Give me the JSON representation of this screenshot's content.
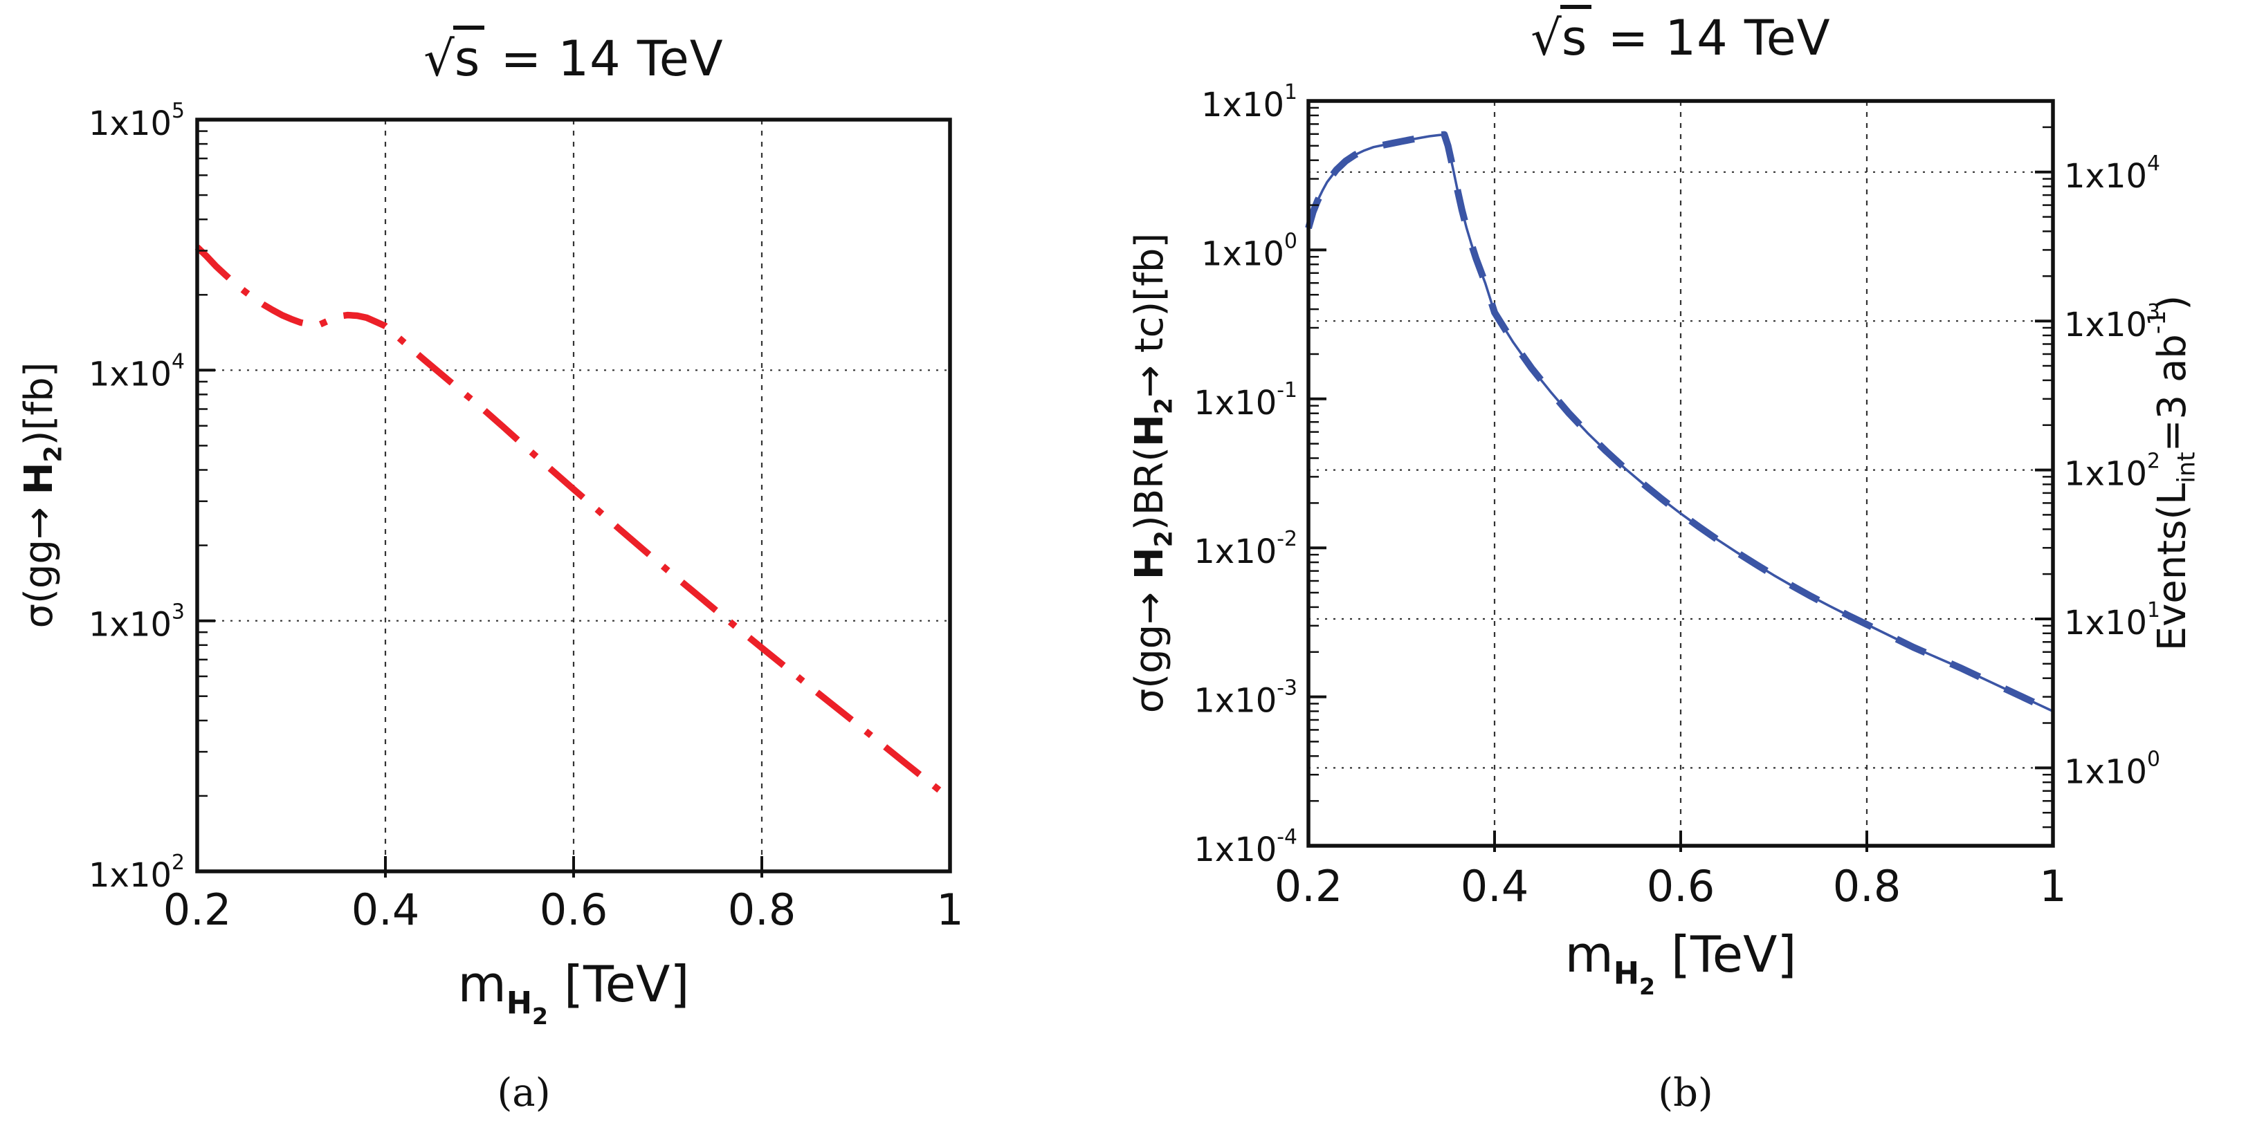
{
  "figure": {
    "background": "#ffffff",
    "frame_color": "#111111",
    "grid_color": "#333333"
  },
  "chart_data": [
    {
      "id": "a",
      "type": "line",
      "title": "√s = 14 TeV",
      "title_parts": {
        "radical": "√",
        "radicand": "s",
        "rest": " = 14 TeV"
      },
      "xlabel_text": "m_H2 [TeV]",
      "xlabel_segments": [
        {
          "t": "m"
        },
        {
          "t": "H",
          "b": true,
          "lvl": 1
        },
        {
          "t": "2",
          "b": true,
          "lvl": 2
        },
        {
          "t": " [TeV]"
        }
      ],
      "ylabel_text": "σ(gg→ H2)[fb]",
      "ylabel_segments": [
        {
          "t": "σ(gg→ "
        },
        {
          "t": "H",
          "b": true
        },
        {
          "t": "2",
          "b": true,
          "lvl": 1
        },
        {
          "t": ")[fb]"
        }
      ],
      "xlim": [
        0.2,
        1.0
      ],
      "xticks": [
        {
          "v": 0.2,
          "label": "0.2"
        },
        {
          "v": 0.4,
          "label": "0.4"
        },
        {
          "v": 0.6,
          "label": "0.6"
        },
        {
          "v": 0.8,
          "label": "0.8"
        },
        {
          "v": 1.0,
          "label": "1"
        }
      ],
      "ylog": {
        "top_exponent": 5,
        "bottom_exponent": 2,
        "tick_prefix": "1x10",
        "tick_exponents": [
          5,
          4,
          3,
          2
        ]
      },
      "grid": {
        "vertical_x": [
          0.4,
          0.6,
          0.8
        ],
        "horizontal_sigma_exponents": [
          4,
          3
        ]
      },
      "series": [
        {
          "name": "sigma(gg->H2)[fb]",
          "color": "#ec2028",
          "line_style": "dash-dot",
          "points": [
            [
              0.2,
              31000
            ],
            [
              0.21,
              28500
            ],
            [
              0.22,
              26000
            ],
            [
              0.23,
              24000
            ],
            [
              0.24,
              22200
            ],
            [
              0.25,
              20700
            ],
            [
              0.26,
              19400
            ],
            [
              0.27,
              18300
            ],
            [
              0.28,
              17400
            ],
            [
              0.29,
              16600
            ],
            [
              0.3,
              16000
            ],
            [
              0.31,
              15500
            ],
            [
              0.32,
              15200
            ],
            [
              0.325,
              15100
            ],
            [
              0.33,
              15200
            ],
            [
              0.34,
              15800
            ],
            [
              0.35,
              16400
            ],
            [
              0.36,
              16600
            ],
            [
              0.37,
              16500
            ],
            [
              0.38,
              16200
            ],
            [
              0.39,
              15600
            ],
            [
              0.4,
              15000
            ],
            [
              0.42,
              12900
            ],
            [
              0.44,
              11100
            ],
            [
              0.46,
              9600
            ],
            [
              0.48,
              8300
            ],
            [
              0.5,
              7200
            ],
            [
              0.525,
              5950
            ],
            [
              0.55,
              4900
            ],
            [
              0.575,
              4050
            ],
            [
              0.6,
              3350
            ],
            [
              0.625,
              2780
            ],
            [
              0.65,
              2300
            ],
            [
              0.675,
              1910
            ],
            [
              0.7,
              1590
            ],
            [
              0.725,
              1330
            ],
            [
              0.75,
              1110
            ],
            [
              0.775,
              930
            ],
            [
              0.8,
              780
            ],
            [
              0.85,
              550
            ],
            [
              0.9,
              390
            ],
            [
              0.95,
              275
            ],
            [
              1.0,
              195
            ]
          ]
        }
      ],
      "caption": "(a)"
    },
    {
      "id": "b",
      "type": "line",
      "title": "√s = 14 TeV",
      "title_parts": {
        "radical": "√",
        "radicand": "s",
        "rest": " = 14 TeV"
      },
      "xlabel_text": "m_H2 [TeV]",
      "xlabel_segments": [
        {
          "t": "m"
        },
        {
          "t": "H",
          "b": true,
          "lvl": 1
        },
        {
          "t": "2",
          "b": true,
          "lvl": 2
        },
        {
          "t": " [TeV]"
        }
      ],
      "ylabel_text": "σ(gg→ H2)BR(H2→ tc)[fb]",
      "ylabel_segments": [
        {
          "t": "σ(gg→ "
        },
        {
          "t": "H",
          "b": true
        },
        {
          "t": "2",
          "b": true,
          "lvl": 1
        },
        {
          "t": ")BR("
        },
        {
          "t": "H",
          "b": true
        },
        {
          "t": "2",
          "b": true,
          "lvl": 1
        },
        {
          "t": "→ tc)[fb]"
        }
      ],
      "xlim": [
        0.2,
        1.0
      ],
      "xticks": [
        {
          "v": 0.2,
          "label": "0.2"
        },
        {
          "v": 0.4,
          "label": "0.4"
        },
        {
          "v": 0.6,
          "label": "0.6"
        },
        {
          "v": 0.8,
          "label": "0.8"
        },
        {
          "v": 1.0,
          "label": "1"
        }
      ],
      "ylog": {
        "top_exponent": 1,
        "bottom_exponent": -4,
        "tick_prefix": "1x10",
        "tick_exponents": [
          1,
          0,
          -1,
          -2,
          -3,
          -4
        ]
      },
      "right_axis": {
        "label_text": "Events(Lint=3 ab⁻¹)",
        "label_segments": [
          {
            "t": "Events(L"
          },
          {
            "t": "int",
            "lvl": 1
          },
          {
            "t": "=3 ab"
          },
          {
            "t": "-1",
            "lvl": -1
          },
          {
            "t": ")"
          }
        ],
        "tick_prefix": "1x10",
        "tick_exponents": [
          4,
          3,
          2,
          1,
          0
        ],
        "events_per_fb": 3000
      },
      "grid": {
        "vertical_x": [
          0.4,
          0.6,
          0.8
        ],
        "horizontal_event_exponents": [
          4,
          3,
          2,
          1,
          0
        ]
      },
      "series": [
        {
          "name": "sigma(gg->H2)xBR(H2->tc)[fb]",
          "color": "#3b55a5",
          "line_style": "dashed-over-solid",
          "points": [
            [
              0.2,
              1.4
            ],
            [
              0.205,
              1.8
            ],
            [
              0.21,
              2.15
            ],
            [
              0.215,
              2.5
            ],
            [
              0.22,
              2.85
            ],
            [
              0.23,
              3.45
            ],
            [
              0.24,
              3.95
            ],
            [
              0.25,
              4.35
            ],
            [
              0.26,
              4.65
            ],
            [
              0.27,
              4.9
            ],
            [
              0.28,
              5.05
            ],
            [
              0.29,
              5.2
            ],
            [
              0.3,
              5.35
            ],
            [
              0.31,
              5.5
            ],
            [
              0.32,
              5.65
            ],
            [
              0.33,
              5.8
            ],
            [
              0.34,
              5.9
            ],
            [
              0.346,
              5.95
            ],
            [
              0.35,
              5.0
            ],
            [
              0.355,
              3.6
            ],
            [
              0.36,
              2.55
            ],
            [
              0.365,
              1.85
            ],
            [
              0.37,
              1.4
            ],
            [
              0.375,
              1.1
            ],
            [
              0.38,
              0.88
            ],
            [
              0.39,
              0.6
            ],
            [
              0.4,
              0.38
            ],
            [
              0.42,
              0.24
            ],
            [
              0.44,
              0.16
            ],
            [
              0.46,
              0.112
            ],
            [
              0.48,
              0.08
            ],
            [
              0.5,
              0.059
            ],
            [
              0.52,
              0.0445
            ],
            [
              0.54,
              0.0342
            ],
            [
              0.56,
              0.0268
            ],
            [
              0.58,
              0.0212
            ],
            [
              0.6,
              0.017
            ],
            [
              0.62,
              0.0138
            ],
            [
              0.64,
              0.0113
            ],
            [
              0.66,
              0.00935
            ],
            [
              0.68,
              0.0078
            ],
            [
              0.7,
              0.00655
            ],
            [
              0.72,
              0.00555
            ],
            [
              0.74,
              0.00473
            ],
            [
              0.76,
              0.00407
            ],
            [
              0.78,
              0.00352
            ],
            [
              0.8,
              0.00306
            ],
            [
              0.85,
              0.00215
            ],
            [
              0.9,
              0.00157
            ],
            [
              0.95,
              0.00112
            ],
            [
              1.0,
              0.0008
            ]
          ]
        }
      ],
      "caption": "(b)"
    }
  ]
}
